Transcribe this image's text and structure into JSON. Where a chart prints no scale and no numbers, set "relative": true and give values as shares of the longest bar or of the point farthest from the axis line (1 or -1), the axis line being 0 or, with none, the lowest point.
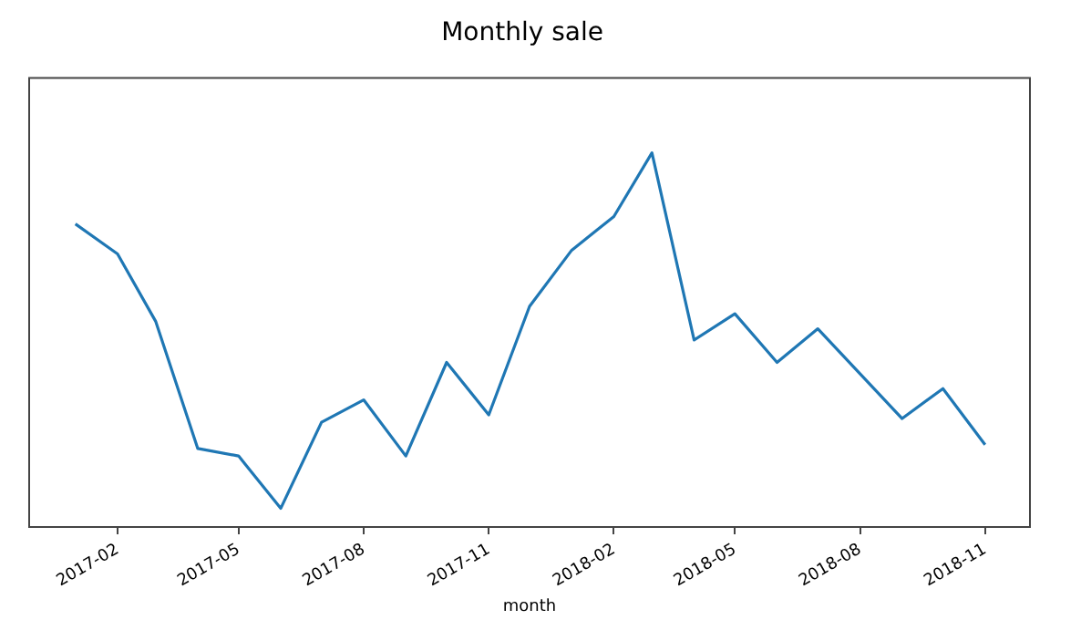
{
  "chart_data": {
    "type": "line",
    "title": "Monthly sale",
    "xlabel": "month",
    "relative": true,
    "x": [
      "2017-01",
      "2017-02",
      "2017-03",
      "2017-04",
      "2017-05",
      "2017-06",
      "2017-07",
      "2017-08",
      "2017-09",
      "2017-10",
      "2017-11",
      "2017-12",
      "2018-01",
      "2018-02",
      "2018-03",
      "2018-04",
      "2018-05",
      "2018-06",
      "2018-07",
      "2018-08",
      "2018-09",
      "2018-10",
      "2018-11"
    ],
    "series": [
      {
        "color": "#1f77b4",
        "values": [
          0.81,
          0.73,
          0.55,
          0.21,
          0.19,
          0.05,
          0.28,
          0.34,
          0.19,
          0.44,
          0.3,
          0.59,
          0.74,
          0.83,
          1,
          0.5,
          0.57,
          0.44,
          0.53,
          0.41,
          0.29,
          0.37,
          0.22
        ]
      }
    ],
    "xlim": [
      "2016-11-28",
      "2018-12-04"
    ],
    "xticks": [
      "2017-02",
      "2017-05",
      "2017-08",
      "2017-11",
      "2018-02",
      "2018-05",
      "2018-08",
      "2018-11"
    ],
    "grid": false,
    "legend": false,
    "marker": "none",
    "line_style": "solid"
  }
}
